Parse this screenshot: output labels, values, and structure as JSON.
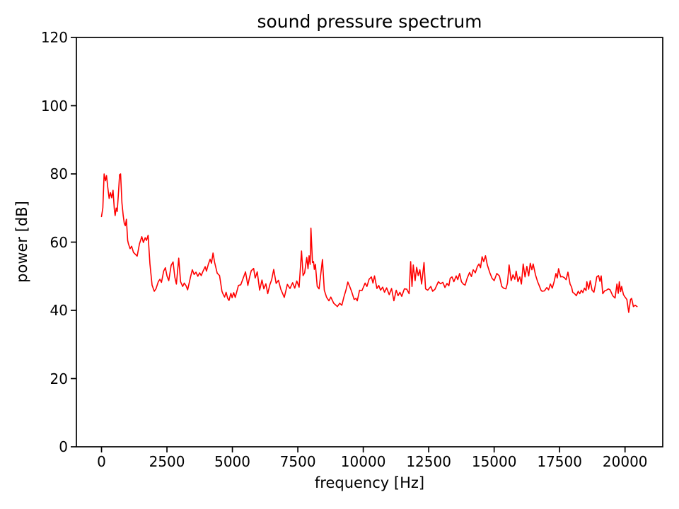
{
  "figure": {
    "background": "#ffffff",
    "text_color": "#000000",
    "spine_color": "#000000"
  },
  "chart_data": {
    "type": "line",
    "title": "sound pressure spectrum",
    "xlabel": "frequency [Hz]",
    "ylabel": "power [dB]",
    "xlim": [
      -960,
      21440
    ],
    "ylim": [
      0,
      120
    ],
    "x_ticks": [
      0,
      2500,
      5000,
      7500,
      10000,
      12500,
      15000,
      17500,
      20000
    ],
    "y_ticks": [
      0,
      20,
      40,
      60,
      80,
      100,
      120
    ],
    "grid": false,
    "legend": "none",
    "line_color": "#ff0000",
    "series": [
      {
        "name": "sound-pressure-spectrum",
        "x": [
          0,
          50,
          100,
          150,
          190,
          240,
          290,
          340,
          390,
          440,
          490,
          520,
          560,
          600,
          640,
          690,
          730,
          780,
          830,
          870,
          910,
          950,
          1000,
          1030,
          1090,
          1150,
          1220,
          1300,
          1360,
          1450,
          1540,
          1600,
          1670,
          1720,
          1780,
          1850,
          1930,
          2015,
          2080,
          2170,
          2230,
          2290,
          2375,
          2440,
          2500,
          2570,
          2660,
          2735,
          2800,
          2860,
          2950,
          3020,
          3100,
          3160,
          3230,
          3290,
          3400,
          3470,
          3540,
          3610,
          3680,
          3750,
          3810,
          3880,
          3960,
          4010,
          4080,
          4150,
          4200,
          4260,
          4320,
          4420,
          4510,
          4600,
          4640,
          4700,
          4760,
          4820,
          4870,
          4940,
          4990,
          5050,
          5110,
          5230,
          5320,
          5450,
          5500,
          5590,
          5650,
          5720,
          5810,
          5870,
          5950,
          6040,
          6130,
          6200,
          6280,
          6350,
          6430,
          6500,
          6580,
          6670,
          6760,
          6850,
          6980,
          7100,
          7200,
          7300,
          7380,
          7460,
          7550,
          7640,
          7700,
          7760,
          7840,
          7890,
          7930,
          7970,
          8000,
          8060,
          8100,
          8130,
          8170,
          8240,
          8310,
          8440,
          8510,
          8600,
          8690,
          8760,
          8870,
          9010,
          9100,
          9180,
          9260,
          9340,
          9410,
          9480,
          9550,
          9650,
          9720,
          9770,
          9860,
          9950,
          10070,
          10140,
          10220,
          10310,
          10370,
          10430,
          10520,
          10590,
          10660,
          10740,
          10810,
          10890,
          10990,
          11080,
          11170,
          11260,
          11330,
          11400,
          11470,
          11570,
          11660,
          11750,
          11810,
          11860,
          11910,
          11980,
          12040,
          12100,
          12160,
          12230,
          12320,
          12380,
          12460,
          12580,
          12650,
          12740,
          12870,
          12950,
          13040,
          13120,
          13200,
          13270,
          13320,
          13390,
          13460,
          13550,
          13610,
          13680,
          13750,
          13820,
          13890,
          13970,
          14060,
          14130,
          14200,
          14280,
          14360,
          14420,
          14480,
          14540,
          14600,
          14670,
          14740,
          14830,
          14920,
          15000,
          15100,
          15200,
          15290,
          15360,
          15450,
          15510,
          15570,
          15650,
          15720,
          15790,
          15840,
          15910,
          15980,
          16040,
          16110,
          16180,
          16250,
          16320,
          16380,
          16440,
          16490,
          16580,
          16660,
          16720,
          16790,
          16830,
          16920,
          17010,
          17080,
          17150,
          17220,
          17290,
          17360,
          17410,
          17460,
          17540,
          17600,
          17680,
          17750,
          17820,
          17900,
          17960,
          18000,
          18070,
          18140,
          18210,
          18270,
          18330,
          18390,
          18450,
          18510,
          18540,
          18610,
          18670,
          18740,
          18810,
          18880,
          18920,
          18990,
          19040,
          19090,
          19150,
          19220,
          19290,
          19360,
          19430,
          19530,
          19620,
          19690,
          19740,
          19780,
          19830,
          19870,
          19940,
          20000,
          20070,
          20140,
          20210,
          20250,
          20320,
          20390,
          20460
        ],
        "y": [
          67.5,
          70,
          80,
          78,
          79.5,
          76,
          72.8,
          74.5,
          73,
          75.2,
          69.5,
          67.8,
          70,
          69,
          73.5,
          79.8,
          80,
          71.5,
          67.8,
          65.5,
          64.8,
          66.7,
          60.5,
          59.5,
          58.1,
          58.8,
          57,
          56.4,
          55.9,
          59.5,
          61.6,
          59.9,
          61.3,
          60.5,
          62,
          53.6,
          47.4,
          45.6,
          46.3,
          48.4,
          49.1,
          48.2,
          51.5,
          52.5,
          50.1,
          48.7,
          53.2,
          54.2,
          49.7,
          47.7,
          55.3,
          48.4,
          47,
          48,
          47.2,
          46,
          49.8,
          51.9,
          50.5,
          51.2,
          50,
          51,
          50.2,
          51.5,
          52.8,
          51.5,
          53.5,
          55,
          53.8,
          56.8,
          54.1,
          50.9,
          50.2,
          45.6,
          44.8,
          43.9,
          45.3,
          43.5,
          42.9,
          45,
          43.7,
          45.2,
          43.8,
          47.3,
          47.5,
          50.2,
          51.3,
          47.3,
          49.5,
          51.6,
          52.3,
          49.5,
          51.3,
          45.9,
          48.9,
          46.3,
          47.8,
          44.9,
          47.5,
          49,
          52,
          47.9,
          48.8,
          46.2,
          43.8,
          47.6,
          46.4,
          48.1,
          46.5,
          48.6,
          46.8,
          57.4,
          50.2,
          51,
          55.5,
          52.2,
          56,
          53.5,
          64.1,
          54,
          54.3,
          52,
          53.5,
          47,
          46.3,
          54.9,
          45.9,
          43.8,
          42.8,
          43.9,
          42.1,
          41.1,
          42.1,
          41.5,
          43.9,
          46,
          48.3,
          47,
          45.6,
          43.2,
          43.5,
          42.8,
          45.9,
          45.8,
          48,
          47,
          49.1,
          49.8,
          48,
          50.1,
          46.4,
          47.3,
          45.9,
          46.8,
          45.3,
          46.6,
          44.6,
          46.4,
          42.8,
          45.9,
          44.3,
          45.3,
          44.1,
          46.3,
          46.2,
          44.9,
          54.3,
          47,
          53.3,
          48.7,
          52.6,
          50.2,
          51.9,
          47.7,
          54,
          46.3,
          45.9,
          47,
          45.6,
          46.2,
          48.4,
          47.8,
          48.2,
          46.7,
          47.9,
          47.2,
          49.4,
          49.8,
          48.4,
          50.1,
          49,
          50.8,
          48.4,
          47.7,
          47.4,
          49.4,
          51.1,
          49.9,
          51.9,
          51,
          52.9,
          53.6,
          52.5,
          55.7,
          54.3,
          56,
          53.3,
          51.1,
          49.4,
          48.7,
          50.8,
          50.1,
          47,
          46.5,
          46.3,
          48,
          53.3,
          48.7,
          50.4,
          49.1,
          51.5,
          48.4,
          49.8,
          47.7,
          53.6,
          49.8,
          52.9,
          50.1,
          53.8,
          51.9,
          53.6,
          50.4,
          48.4,
          47.3,
          45.9,
          45.6,
          45.7,
          46.7,
          46,
          47.7,
          46.5,
          48.4,
          50.8,
          49.5,
          52.2,
          49.8,
          49.9,
          49.6,
          49,
          51.2,
          47.7,
          46.8,
          45.3,
          44.9,
          44.3,
          45.6,
          44.9,
          45.9,
          45.2,
          46.5,
          45.8,
          48.4,
          46.2,
          48.7,
          45.9,
          45.3,
          48,
          49.8,
          50.2,
          48.5,
          50.1,
          44.9,
          45.7,
          45.9,
          46.3,
          46,
          44.3,
          43.6,
          47.7,
          45,
          48.4,
          45.5,
          47,
          44.6,
          43.9,
          43.2,
          39.4,
          43.2,
          43.5,
          41.1,
          41.5,
          41.1
        ]
      }
    ]
  }
}
